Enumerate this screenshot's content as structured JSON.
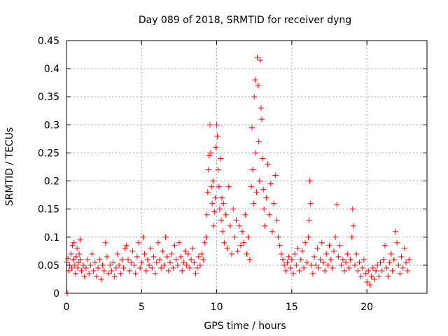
{
  "chart_data": {
    "type": "scatter",
    "title": "Day 089 of 2018, SRMTID for receiver dyng",
    "xlabel": "GPS time / hours",
    "ylabel": "SRMTID / TECUs",
    "xlim": [
      0,
      24
    ],
    "ylim": [
      0,
      0.45
    ],
    "xticks": [
      0,
      5,
      10,
      15,
      20
    ],
    "xtick_labels": [
      "0",
      "5",
      "10",
      "15",
      "20"
    ],
    "yticks": [
      0,
      0.05,
      0.1,
      0.15,
      0.2,
      0.25,
      0.3,
      0.35,
      0.4,
      0.45
    ],
    "ytick_labels": [
      "0",
      "0.05",
      "0.1",
      "0.15",
      "0.2",
      "0.25",
      "0.3",
      "0.35",
      "0.4",
      "0.45"
    ],
    "grid": true,
    "marker": "plus",
    "color": "#ff0000",
    "series": [
      {
        "name": "SRMTID",
        "points": [
          [
            0.0,
            0.055
          ],
          [
            0.05,
            0.0
          ],
          [
            0.1,
            0.062
          ],
          [
            0.15,
            0.04
          ],
          [
            0.2,
            0.05
          ],
          [
            0.3,
            0.07
          ],
          [
            0.35,
            0.045
          ],
          [
            0.4,
            0.085
          ],
          [
            0.45,
            0.06
          ],
          [
            0.5,
            0.09
          ],
          [
            0.55,
            0.05
          ],
          [
            0.6,
            0.035
          ],
          [
            0.65,
            0.065
          ],
          [
            0.7,
            0.08
          ],
          [
            0.75,
            0.045
          ],
          [
            0.8,
            0.055
          ],
          [
            0.85,
            0.07
          ],
          [
            0.9,
            0.095
          ],
          [
            0.95,
            0.06
          ],
          [
            1.0,
            0.04
          ],
          [
            1.1,
            0.05
          ],
          [
            1.2,
            0.03
          ],
          [
            1.3,
            0.045
          ],
          [
            1.4,
            0.06
          ],
          [
            1.5,
            0.035
          ],
          [
            1.6,
            0.05
          ],
          [
            1.7,
            0.07
          ],
          [
            1.8,
            0.04
          ],
          [
            1.9,
            0.055
          ],
          [
            2.0,
            0.03
          ],
          [
            2.1,
            0.045
          ],
          [
            2.2,
            0.06
          ],
          [
            2.3,
            0.025
          ],
          [
            2.4,
            0.05
          ],
          [
            2.5,
            0.04
          ],
          [
            2.6,
            0.09
          ],
          [
            2.7,
            0.065
          ],
          [
            2.8,
            0.035
          ],
          [
            2.9,
            0.05
          ],
          [
            3.0,
            0.04
          ],
          [
            3.1,
            0.055
          ],
          [
            3.2,
            0.03
          ],
          [
            3.3,
            0.045
          ],
          [
            3.4,
            0.07
          ],
          [
            3.5,
            0.05
          ],
          [
            3.6,
            0.035
          ],
          [
            3.7,
            0.06
          ],
          [
            3.8,
            0.045
          ],
          [
            3.9,
            0.08
          ],
          [
            4.0,
            0.085
          ],
          [
            4.1,
            0.06
          ],
          [
            4.2,
            0.04
          ],
          [
            4.3,
            0.055
          ],
          [
            4.4,
            0.075
          ],
          [
            4.5,
            0.05
          ],
          [
            4.6,
            0.035
          ],
          [
            4.7,
            0.065
          ],
          [
            4.8,
            0.09
          ],
          [
            4.9,
            0.045
          ],
          [
            5.0,
            0.055
          ],
          [
            5.1,
            0.1
          ],
          [
            5.2,
            0.07
          ],
          [
            5.3,
            0.04
          ],
          [
            5.4,
            0.06
          ],
          [
            5.5,
            0.05
          ],
          [
            5.6,
            0.08
          ],
          [
            5.7,
            0.045
          ],
          [
            5.8,
            0.065
          ],
          [
            5.9,
            0.035
          ],
          [
            6.0,
            0.055
          ],
          [
            6.1,
            0.09
          ],
          [
            6.2,
            0.06
          ],
          [
            6.3,
            0.045
          ],
          [
            6.4,
            0.075
          ],
          [
            6.5,
            0.05
          ],
          [
            6.6,
            0.1
          ],
          [
            6.7,
            0.065
          ],
          [
            6.8,
            0.04
          ],
          [
            6.9,
            0.055
          ],
          [
            7.0,
            0.07
          ],
          [
            7.1,
            0.045
          ],
          [
            7.2,
            0.085
          ],
          [
            7.3,
            0.06
          ],
          [
            7.4,
            0.05
          ],
          [
            7.5,
            0.09
          ],
          [
            7.6,
            0.065
          ],
          [
            7.7,
            0.04
          ],
          [
            7.8,
            0.055
          ],
          [
            7.9,
            0.075
          ],
          [
            8.0,
            0.05
          ],
          [
            8.1,
            0.07
          ],
          [
            8.2,
            0.045
          ],
          [
            8.3,
            0.06
          ],
          [
            8.4,
            0.08
          ],
          [
            8.5,
            0.055
          ],
          [
            8.6,
            0.035
          ],
          [
            8.7,
            0.045
          ],
          [
            8.8,
            0.065
          ],
          [
            8.9,
            0.05
          ],
          [
            9.0,
            0.07
          ],
          [
            9.1,
            0.06
          ],
          [
            9.2,
            0.09
          ],
          [
            9.3,
            0.1
          ],
          [
            9.35,
            0.14
          ],
          [
            9.4,
            0.18
          ],
          [
            9.45,
            0.22
          ],
          [
            9.5,
            0.245
          ],
          [
            9.55,
            0.3
          ],
          [
            9.6,
            0.25
          ],
          [
            9.65,
            0.19
          ],
          [
            9.7,
            0.16
          ],
          [
            9.75,
            0.2
          ],
          [
            9.8,
            0.12
          ],
          [
            9.85,
            0.145
          ],
          [
            9.9,
            0.17
          ],
          [
            9.95,
            0.26
          ],
          [
            10.0,
            0.3
          ],
          [
            10.05,
            0.28
          ],
          [
            10.1,
            0.22
          ],
          [
            10.15,
            0.19
          ],
          [
            10.2,
            0.15
          ],
          [
            10.25,
            0.24
          ],
          [
            10.3,
            0.13
          ],
          [
            10.35,
            0.17
          ],
          [
            10.4,
            0.11
          ],
          [
            10.45,
            0.16
          ],
          [
            10.5,
            0.09
          ],
          [
            10.6,
            0.14
          ],
          [
            10.7,
            0.08
          ],
          [
            10.8,
            0.19
          ],
          [
            10.9,
            0.12
          ],
          [
            11.0,
            0.07
          ],
          [
            11.1,
            0.15
          ],
          [
            11.2,
            0.1
          ],
          [
            11.3,
            0.13
          ],
          [
            11.4,
            0.075
          ],
          [
            11.5,
            0.12
          ],
          [
            11.6,
            0.085
          ],
          [
            11.7,
            0.11
          ],
          [
            11.8,
            0.09
          ],
          [
            11.9,
            0.14
          ],
          [
            12.0,
            0.07
          ],
          [
            12.1,
            0.1
          ],
          [
            12.2,
            0.06
          ],
          [
            12.3,
            0.19
          ],
          [
            12.35,
            0.295
          ],
          [
            12.4,
            0.22
          ],
          [
            12.45,
            0.16
          ],
          [
            12.5,
            0.35
          ],
          [
            12.55,
            0.38
          ],
          [
            12.6,
            0.25
          ],
          [
            12.65,
            0.18
          ],
          [
            12.7,
            0.42
          ],
          [
            12.75,
            0.37
          ],
          [
            12.8,
            0.27
          ],
          [
            12.85,
            0.2
          ],
          [
            12.9,
            0.415
          ],
          [
            12.95,
            0.33
          ],
          [
            13.0,
            0.31
          ],
          [
            13.05,
            0.24
          ],
          [
            13.1,
            0.185
          ],
          [
            13.15,
            0.15
          ],
          [
            13.2,
            0.12
          ],
          [
            13.3,
            0.17
          ],
          [
            13.4,
            0.23
          ],
          [
            13.5,
            0.14
          ],
          [
            13.6,
            0.195
          ],
          [
            13.7,
            0.11
          ],
          [
            13.8,
            0.16
          ],
          [
            13.9,
            0.21
          ],
          [
            14.0,
            0.13
          ],
          [
            14.1,
            0.1
          ],
          [
            14.2,
            0.085
          ],
          [
            14.3,
            0.07
          ],
          [
            14.4,
            0.06
          ],
          [
            14.5,
            0.05
          ],
          [
            14.6,
            0.04
          ],
          [
            14.7,
            0.055
          ],
          [
            14.8,
            0.065
          ],
          [
            14.9,
            0.045
          ],
          [
            15.0,
            0.06
          ],
          [
            15.1,
            0.035
          ],
          [
            15.2,
            0.07
          ],
          [
            15.3,
            0.05
          ],
          [
            15.4,
            0.08
          ],
          [
            15.5,
            0.04
          ],
          [
            15.6,
            0.06
          ],
          [
            15.7,
            0.075
          ],
          [
            15.8,
            0.045
          ],
          [
            15.9,
            0.09
          ],
          [
            16.0,
            0.055
          ],
          [
            16.1,
            0.1
          ],
          [
            16.15,
            0.13
          ],
          [
            16.2,
            0.2
          ],
          [
            16.25,
            0.16
          ],
          [
            16.3,
            0.05
          ],
          [
            16.4,
            0.035
          ],
          [
            16.5,
            0.065
          ],
          [
            16.6,
            0.05
          ],
          [
            16.7,
            0.08
          ],
          [
            16.8,
            0.045
          ],
          [
            16.9,
            0.06
          ],
          [
            17.0,
            0.09
          ],
          [
            17.1,
            0.055
          ],
          [
            17.2,
            0.04
          ],
          [
            17.3,
            0.07
          ],
          [
            17.4,
            0.05
          ],
          [
            17.5,
            0.085
          ],
          [
            17.6,
            0.06
          ],
          [
            17.7,
            0.045
          ],
          [
            17.8,
            0.075
          ],
          [
            17.9,
            0.1
          ],
          [
            18.0,
            0.158
          ],
          [
            18.1,
            0.065
          ],
          [
            18.2,
            0.085
          ],
          [
            18.3,
            0.05
          ],
          [
            18.4,
            0.06
          ],
          [
            18.5,
            0.04
          ],
          [
            18.6,
            0.055
          ],
          [
            18.7,
            0.07
          ],
          [
            18.8,
            0.045
          ],
          [
            18.9,
            0.06
          ],
          [
            19.0,
            0.1
          ],
          [
            19.05,
            0.15
          ],
          [
            19.1,
            0.12
          ],
          [
            19.2,
            0.05
          ],
          [
            19.3,
            0.07
          ],
          [
            19.4,
            0.04
          ],
          [
            19.5,
            0.055
          ],
          [
            19.6,
            0.03
          ],
          [
            19.7,
            0.045
          ],
          [
            19.8,
            0.06
          ],
          [
            19.9,
            0.035
          ],
          [
            20.0,
            0.02
          ],
          [
            20.1,
            0.04
          ],
          [
            20.2,
            0.015
          ],
          [
            20.3,
            0.03
          ],
          [
            20.4,
            0.045
          ],
          [
            20.5,
            0.025
          ],
          [
            20.6,
            0.04
          ],
          [
            20.7,
            0.05
          ],
          [
            20.8,
            0.03
          ],
          [
            20.9,
            0.055
          ],
          [
            21.0,
            0.04
          ],
          [
            21.1,
            0.06
          ],
          [
            21.2,
            0.085
          ],
          [
            21.3,
            0.045
          ],
          [
            21.4,
            0.03
          ],
          [
            21.5,
            0.055
          ],
          [
            21.6,
            0.07
          ],
          [
            21.7,
            0.04
          ],
          [
            21.8,
            0.06
          ],
          [
            21.9,
            0.11
          ],
          [
            22.0,
            0.09
          ],
          [
            22.1,
            0.05
          ],
          [
            22.2,
            0.035
          ],
          [
            22.3,
            0.065
          ],
          [
            22.4,
            0.045
          ],
          [
            22.5,
            0.08
          ],
          [
            22.6,
            0.055
          ],
          [
            22.7,
            0.04
          ],
          [
            22.8,
            0.06
          ]
        ]
      }
    ]
  }
}
